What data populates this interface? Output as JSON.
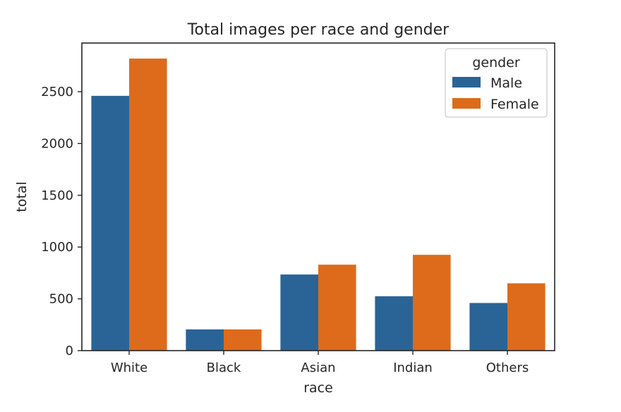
{
  "chart_data": {
    "type": "bar",
    "title": "Total images per race and gender",
    "xlabel": "race",
    "ylabel": "total",
    "categories": [
      "White",
      "Black",
      "Asian",
      "Indian",
      "Others"
    ],
    "series": [
      {
        "name": "Male",
        "color": "#2a6496",
        "values": [
          2460,
          205,
          735,
          525,
          460
        ]
      },
      {
        "name": "Female",
        "color": "#dd6b1b",
        "values": [
          2820,
          205,
          830,
          925,
          650
        ]
      }
    ],
    "ylim": [
      0,
      2970
    ],
    "yticks": [
      0,
      500,
      1000,
      1500,
      2000,
      2500
    ],
    "legend": {
      "title": "gender",
      "placement": "top-right"
    },
    "grid": false
  }
}
